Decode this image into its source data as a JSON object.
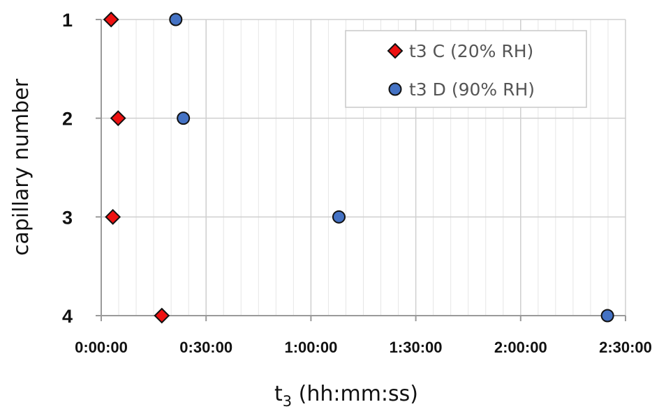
{
  "chart_data": {
    "type": "scatter",
    "xlabel": "t",
    "xlabel_sub": "3",
    "xlabel_unit": "(hh:mm:ss)",
    "ylabel": "capillary number",
    "xlim": [
      0,
      9000
    ],
    "x_ticks": [
      {
        "value": 0,
        "label": "0:00:00"
      },
      {
        "value": 1800,
        "label": "0:30:00"
      },
      {
        "value": 3600,
        "label": "1:00:00"
      },
      {
        "value": 5400,
        "label": "1:30:00"
      },
      {
        "value": 7200,
        "label": "2:00:00"
      },
      {
        "value": 9000,
        "label": "2:30:00"
      }
    ],
    "x_minor_step": 300,
    "y_ticks": [
      {
        "value": 1,
        "label": "1"
      },
      {
        "value": 2,
        "label": "2"
      },
      {
        "value": 3,
        "label": "3"
      },
      {
        "value": 4,
        "label": "4"
      }
    ],
    "y_reversed": true,
    "grid": true,
    "legend_position": "top-right",
    "series": [
      {
        "name": "t3 C (20% RH)",
        "marker": "diamond",
        "color": "#ee1111",
        "points": [
          {
            "y": 1,
            "x": "0:02:50"
          },
          {
            "y": 2,
            "x": "0:04:50"
          },
          {
            "y": 3,
            "x": "0:03:20"
          },
          {
            "y": 4,
            "x": "0:17:20"
          }
        ]
      },
      {
        "name": "t3 D (90% RH)",
        "marker": "circle",
        "color": "#4472c4",
        "points": [
          {
            "y": 1,
            "x": "0:21:20"
          },
          {
            "y": 2,
            "x": "0:23:30"
          },
          {
            "y": 3,
            "x": "1:08:00"
          },
          {
            "y": 4,
            "x": "2:24:50"
          }
        ]
      }
    ]
  }
}
